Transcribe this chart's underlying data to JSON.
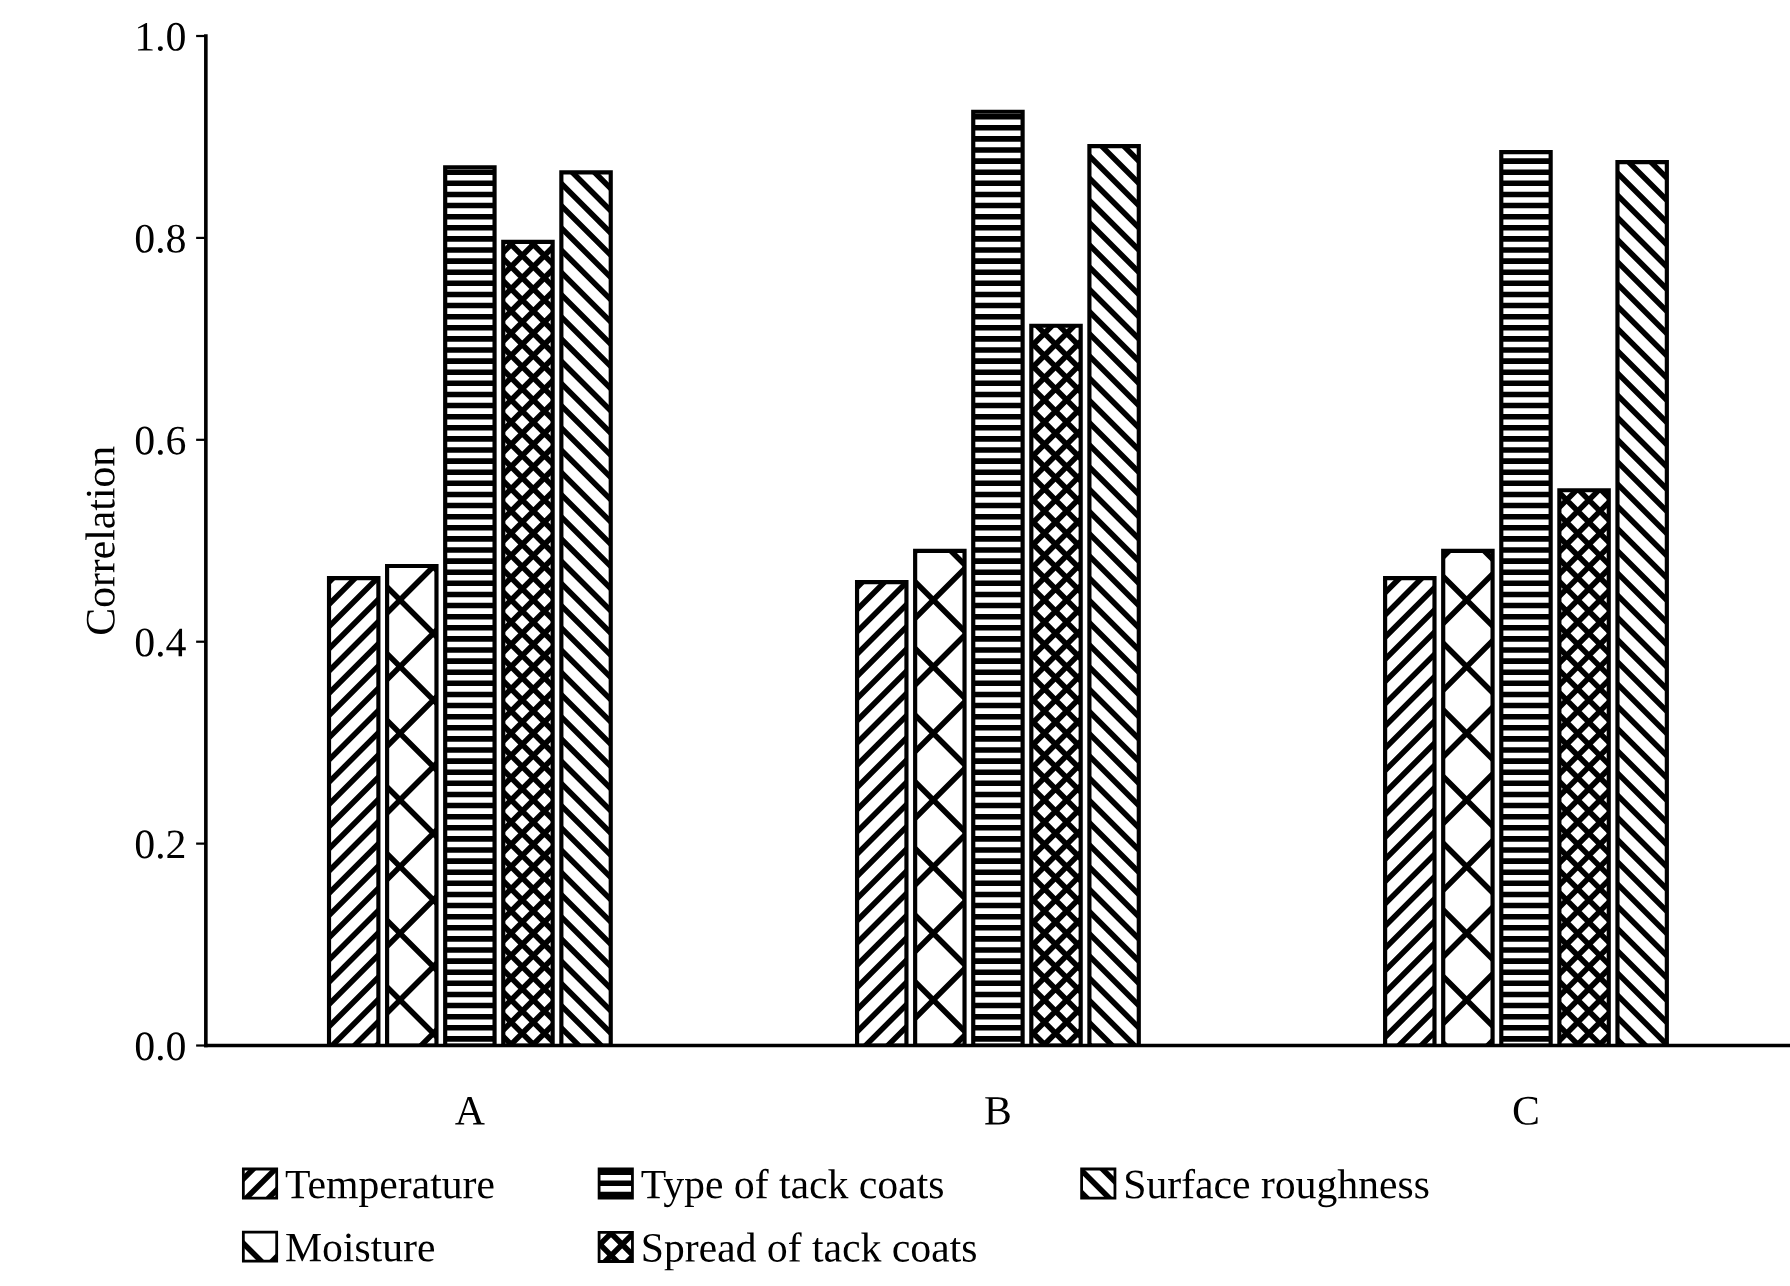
{
  "chart_data": {
    "type": "bar",
    "ylabel": "Correlation",
    "categories": [
      "A",
      "B",
      "C"
    ],
    "series": [
      {
        "name": "Temperature",
        "color": "#000000",
        "values": [
          0.463,
          0.459,
          0.463
        ]
      },
      {
        "name": "Moisture",
        "color": "#000000",
        "values": [
          0.475,
          0.49,
          0.49
        ]
      },
      {
        "name": "Type of tack coats",
        "color": "#000000",
        "values": [
          0.87,
          0.925,
          0.885
        ]
      },
      {
        "name": "Spread of tack coats",
        "color": "#000000",
        "values": [
          0.796,
          0.713,
          0.55
        ]
      },
      {
        "name": "Surface roughness",
        "color": "#000000",
        "values": [
          0.865,
          0.891,
          0.875
        ]
      }
    ],
    "ylim": [
      0,
      1
    ],
    "yticks": [
      {
        "value": 0,
        "label": "0.0"
      },
      {
        "value": 0.2,
        "label": "0.2"
      },
      {
        "value": 0.4,
        "label": "0.4"
      },
      {
        "value": 0.6,
        "label": "0.6"
      },
      {
        "value": 0.8,
        "label": "0.8"
      },
      {
        "value": 1,
        "label": "1.0"
      }
    ],
    "grid": false,
    "legend": "bottom"
  }
}
